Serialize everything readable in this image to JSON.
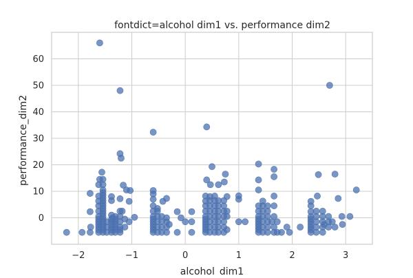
{
  "chart_data": {
    "type": "scatter",
    "title": "fontdict=alcohol dim1 vs. performance dim2",
    "xlabel": "alcohol_dim1",
    "ylabel": "performance_dim2",
    "xlim": [
      -2.5,
      3.5
    ],
    "ylim": [
      -10,
      70
    ],
    "xticks": [
      -2,
      -1,
      0,
      1,
      2,
      3
    ],
    "yticks": [
      0,
      10,
      20,
      30,
      40,
      50,
      60
    ],
    "grid": true,
    "point_color": "#4c72b0",
    "background": "#ffffff",
    "grid_color": "#cccccc",
    "points": [
      {
        "x": -2.22,
        "y": -5.5
      },
      {
        "x": -1.93,
        "y": -5.5
      },
      {
        "x": -1.78,
        "y": -5.5
      },
      {
        "x": -1.77,
        "y": -3.5
      },
      {
        "x": -1.78,
        "y": 9.2
      },
      {
        "x": -1.78,
        "y": 2.3
      },
      {
        "x": -1.62,
        "y": -5.5
      },
      {
        "x": -1.62,
        "y": -4.5
      },
      {
        "x": -1.62,
        "y": -3.5
      },
      {
        "x": -1.62,
        "y": -2.5
      },
      {
        "x": -1.62,
        "y": -1.5
      },
      {
        "x": -1.62,
        "y": -0.5
      },
      {
        "x": -1.62,
        "y": 0.5
      },
      {
        "x": -1.62,
        "y": 2.5
      },
      {
        "x": -1.62,
        "y": 4.5
      },
      {
        "x": -1.62,
        "y": 6.3
      },
      {
        "x": -1.62,
        "y": 8.2
      },
      {
        "x": -1.62,
        "y": 12.5
      },
      {
        "x": -1.6,
        "y": 14.5
      },
      {
        "x": -1.6,
        "y": 66.0
      },
      {
        "x": -1.54,
        "y": -5.5
      },
      {
        "x": -1.54,
        "y": -4.5
      },
      {
        "x": -1.54,
        "y": -3.5
      },
      {
        "x": -1.54,
        "y": -2.5
      },
      {
        "x": -1.54,
        "y": -1.5
      },
      {
        "x": -1.54,
        "y": -0.5
      },
      {
        "x": -1.54,
        "y": 0.5
      },
      {
        "x": -1.54,
        "y": 1.5
      },
      {
        "x": -1.54,
        "y": 2.5
      },
      {
        "x": -1.54,
        "y": 3.5
      },
      {
        "x": -1.54,
        "y": 4.5
      },
      {
        "x": -1.54,
        "y": 5.5
      },
      {
        "x": -1.54,
        "y": 6.5
      },
      {
        "x": -1.54,
        "y": 7.5
      },
      {
        "x": -1.54,
        "y": 8.5
      },
      {
        "x": -1.54,
        "y": 9.5
      },
      {
        "x": -1.54,
        "y": 10.5
      },
      {
        "x": -1.54,
        "y": 12.5
      },
      {
        "x": -1.54,
        "y": 14.5
      },
      {
        "x": -1.56,
        "y": 17.2
      },
      {
        "x": -1.47,
        "y": -5.5
      },
      {
        "x": -1.47,
        "y": -3.5
      },
      {
        "x": -1.47,
        "y": -1.5
      },
      {
        "x": -1.38,
        "y": -5.5
      },
      {
        "x": -1.38,
        "y": -4.5
      },
      {
        "x": -1.38,
        "y": -3.5
      },
      {
        "x": -1.38,
        "y": -2.5
      },
      {
        "x": -1.38,
        "y": -1.5
      },
      {
        "x": -1.38,
        "y": -0.5
      },
      {
        "x": -1.38,
        "y": 1.0
      },
      {
        "x": -1.38,
        "y": 6.5
      },
      {
        "x": -1.38,
        "y": 8.0
      },
      {
        "x": -1.36,
        "y": 0.0
      },
      {
        "x": -1.31,
        "y": -5.5
      },
      {
        "x": -1.31,
        "y": -4.5
      },
      {
        "x": -1.31,
        "y": -3.5
      },
      {
        "x": -1.31,
        "y": -2.5
      },
      {
        "x": -1.31,
        "y": -1.5
      },
      {
        "x": -1.31,
        "y": -0.5
      },
      {
        "x": -1.31,
        "y": 0.5
      },
      {
        "x": -1.22,
        "y": -5.5
      },
      {
        "x": -1.22,
        "y": -4.5
      },
      {
        "x": -1.22,
        "y": -3.5
      },
      {
        "x": -1.22,
        "y": -1.5
      },
      {
        "x": -1.22,
        "y": 0.5
      },
      {
        "x": -1.22,
        "y": 2.5
      },
      {
        "x": -1.22,
        "y": 7.2
      },
      {
        "x": -1.22,
        "y": 24.2
      },
      {
        "x": -1.2,
        "y": 22.5
      },
      {
        "x": -1.22,
        "y": 48.0
      },
      {
        "x": -1.18,
        "y": 2.5
      },
      {
        "x": -1.16,
        "y": 12.3
      },
      {
        "x": -1.13,
        "y": -3.5
      },
      {
        "x": -1.13,
        "y": -0.5
      },
      {
        "x": -1.1,
        "y": 10.5
      },
      {
        "x": -1.05,
        "y": -1.5
      },
      {
        "x": -1.05,
        "y": 6.2
      },
      {
        "x": -1.03,
        "y": 10.3
      },
      {
        "x": -0.95,
        "y": 0.2
      },
      {
        "x": -0.6,
        "y": -5.5
      },
      {
        "x": -0.6,
        "y": -4.5
      },
      {
        "x": -0.6,
        "y": -3.5
      },
      {
        "x": -0.6,
        "y": -2.5
      },
      {
        "x": -0.6,
        "y": -1.5
      },
      {
        "x": -0.6,
        "y": -0.5
      },
      {
        "x": -0.6,
        "y": 0.5
      },
      {
        "x": -0.6,
        "y": 2.5
      },
      {
        "x": -0.6,
        "y": 4.5
      },
      {
        "x": -0.6,
        "y": 7.0
      },
      {
        "x": -0.6,
        "y": 9.0
      },
      {
        "x": -0.6,
        "y": 10.3
      },
      {
        "x": -0.6,
        "y": 32.3
      },
      {
        "x": -0.52,
        "y": -5.5
      },
      {
        "x": -0.52,
        "y": -3.5
      },
      {
        "x": -0.52,
        "y": -1.5
      },
      {
        "x": -0.52,
        "y": 0.5
      },
      {
        "x": -0.52,
        "y": 2.5
      },
      {
        "x": -0.52,
        "y": 3.5
      },
      {
        "x": -0.44,
        "y": -5.5
      },
      {
        "x": -0.44,
        "y": -3.5
      },
      {
        "x": -0.44,
        "y": -1.5
      },
      {
        "x": -0.44,
        "y": 0.5
      },
      {
        "x": -0.42,
        "y": 6.2
      },
      {
        "x": -0.35,
        "y": -5.5
      },
      {
        "x": -0.35,
        "y": -3.5
      },
      {
        "x": -0.35,
        "y": -1.5
      },
      {
        "x": -0.35,
        "y": 0.0
      },
      {
        "x": -0.35,
        "y": 7.3
      },
      {
        "x": -0.3,
        "y": -2.5
      },
      {
        "x": -0.15,
        "y": -5.5
      },
      {
        "x": -0.15,
        "y": 2.3
      },
      {
        "x": -0.08,
        "y": 0.0
      },
      {
        "x": 0.0,
        "y": -1.5
      },
      {
        "x": 0.12,
        "y": -5.5
      },
      {
        "x": 0.12,
        "y": -1.5
      },
      {
        "x": 0.12,
        "y": 2.3
      },
      {
        "x": 0.38,
        "y": -5.5
      },
      {
        "x": 0.38,
        "y": -4.5
      },
      {
        "x": 0.38,
        "y": -3.5
      },
      {
        "x": 0.38,
        "y": -2.5
      },
      {
        "x": 0.38,
        "y": -1.5
      },
      {
        "x": 0.38,
        "y": -0.5
      },
      {
        "x": 0.38,
        "y": 0.5
      },
      {
        "x": 0.38,
        "y": 2.5
      },
      {
        "x": 0.38,
        "y": 4.5
      },
      {
        "x": 0.38,
        "y": 6.3
      },
      {
        "x": 0.38,
        "y": 8.2
      },
      {
        "x": 0.4,
        "y": 14.3
      },
      {
        "x": 0.4,
        "y": 34.3
      },
      {
        "x": 0.46,
        "y": -5.5
      },
      {
        "x": 0.46,
        "y": -3.5
      },
      {
        "x": 0.46,
        "y": -1.5
      },
      {
        "x": 0.46,
        "y": 0.5
      },
      {
        "x": 0.46,
        "y": 2.5
      },
      {
        "x": 0.46,
        "y": 4.5
      },
      {
        "x": 0.46,
        "y": 6.5
      },
      {
        "x": 0.46,
        "y": 8.0
      },
      {
        "x": 0.47,
        "y": 12.5
      },
      {
        "x": 0.5,
        "y": 19.3
      },
      {
        "x": 0.55,
        "y": -5.5
      },
      {
        "x": 0.55,
        "y": -3.5
      },
      {
        "x": 0.55,
        "y": -1.5
      },
      {
        "x": 0.55,
        "y": 0.5
      },
      {
        "x": 0.55,
        "y": 2.5
      },
      {
        "x": 0.55,
        "y": 4.5
      },
      {
        "x": 0.55,
        "y": 6.5
      },
      {
        "x": 0.55,
        "y": 8.2
      },
      {
        "x": 0.62,
        "y": 12.5
      },
      {
        "x": 0.62,
        "y": -5.5
      },
      {
        "x": 0.62,
        "y": -3.5
      },
      {
        "x": 0.62,
        "y": -1.5
      },
      {
        "x": 0.62,
        "y": 0.5
      },
      {
        "x": 0.62,
        "y": 2.5
      },
      {
        "x": 0.62,
        "y": 4.5
      },
      {
        "x": 0.62,
        "y": 6.5
      },
      {
        "x": 0.72,
        "y": -5.5
      },
      {
        "x": 0.72,
        "y": -3.5
      },
      {
        "x": 0.72,
        "y": -1.5
      },
      {
        "x": 0.72,
        "y": 0.5
      },
      {
        "x": 0.72,
        "y": 2.5
      },
      {
        "x": 0.72,
        "y": 4.5
      },
      {
        "x": 0.72,
        "y": 6.5
      },
      {
        "x": 0.73,
        "y": 13.5
      },
      {
        "x": 0.75,
        "y": 16.5
      },
      {
        "x": 0.78,
        "y": -4.5
      },
      {
        "x": 0.78,
        "y": 0.5
      },
      {
        "x": 0.78,
        "y": 2.5
      },
      {
        "x": 0.78,
        "y": 8.0
      },
      {
        "x": 1.0,
        "y": 7.0
      },
      {
        "x": 1.0,
        "y": 8.3
      },
      {
        "x": 1.0,
        "y": -1.5
      },
      {
        "x": 1.12,
        "y": -1.5
      },
      {
        "x": 1.37,
        "y": -5.5
      },
      {
        "x": 1.37,
        "y": -4.5
      },
      {
        "x": 1.37,
        "y": -3.5
      },
      {
        "x": 1.37,
        "y": -2.5
      },
      {
        "x": 1.37,
        "y": -1.5
      },
      {
        "x": 1.37,
        "y": -0.5
      },
      {
        "x": 1.37,
        "y": 0.5
      },
      {
        "x": 1.37,
        "y": 2.5
      },
      {
        "x": 1.37,
        "y": 4.5
      },
      {
        "x": 1.37,
        "y": 10.5
      },
      {
        "x": 1.37,
        "y": 14.3
      },
      {
        "x": 1.37,
        "y": 20.3
      },
      {
        "x": 1.45,
        "y": -5.5
      },
      {
        "x": 1.45,
        "y": -3.5
      },
      {
        "x": 1.45,
        "y": -1.5
      },
      {
        "x": 1.45,
        "y": 0.5
      },
      {
        "x": 1.45,
        "y": 2.5
      },
      {
        "x": 1.45,
        "y": 4.5
      },
      {
        "x": 1.45,
        "y": 6.3
      },
      {
        "x": 1.54,
        "y": -5.5
      },
      {
        "x": 1.54,
        "y": -3.5
      },
      {
        "x": 1.54,
        "y": -1.5
      },
      {
        "x": 1.54,
        "y": 0.5
      },
      {
        "x": 1.54,
        "y": 2.5
      },
      {
        "x": 1.54,
        "y": 4.5
      },
      {
        "x": 1.62,
        "y": -1.5
      },
      {
        "x": 1.66,
        "y": -5.5
      },
      {
        "x": 1.66,
        "y": -3.5
      },
      {
        "x": 1.66,
        "y": 0.5
      },
      {
        "x": 1.66,
        "y": 4.5
      },
      {
        "x": 1.66,
        "y": 8.2
      },
      {
        "x": 1.66,
        "y": 15.5
      },
      {
        "x": 1.66,
        "y": 18.3
      },
      {
        "x": 1.72,
        "y": -5.5
      },
      {
        "x": 1.72,
        "y": -1.5
      },
      {
        "x": 1.8,
        "y": -5.5
      },
      {
        "x": 1.9,
        "y": -3.5
      },
      {
        "x": 1.95,
        "y": -5.5
      },
      {
        "x": 2.15,
        "y": -3.5
      },
      {
        "x": 2.35,
        "y": -5.5
      },
      {
        "x": 2.35,
        "y": -4.5
      },
      {
        "x": 2.35,
        "y": -3.5
      },
      {
        "x": 2.35,
        "y": -2.5
      },
      {
        "x": 2.35,
        "y": -1.5
      },
      {
        "x": 2.35,
        "y": -0.5
      },
      {
        "x": 2.35,
        "y": 0.5
      },
      {
        "x": 2.35,
        "y": 2.3
      },
      {
        "x": 2.35,
        "y": 4.5
      },
      {
        "x": 2.35,
        "y": 6.2
      },
      {
        "x": 2.45,
        "y": -5.5
      },
      {
        "x": 2.45,
        "y": -3.5
      },
      {
        "x": 2.45,
        "y": -1.5
      },
      {
        "x": 2.45,
        "y": 0.5
      },
      {
        "x": 2.45,
        "y": 2.5
      },
      {
        "x": 2.47,
        "y": 8.2
      },
      {
        "x": 2.49,
        "y": 16.3
      },
      {
        "x": 2.57,
        "y": -5.5
      },
      {
        "x": 2.57,
        "y": -3.5
      },
      {
        "x": 2.57,
        "y": -1.5
      },
      {
        "x": 2.57,
        "y": 0.5
      },
      {
        "x": 2.57,
        "y": 2.5
      },
      {
        "x": 2.6,
        "y": -2.5
      },
      {
        "x": 2.68,
        "y": -3.5
      },
      {
        "x": 2.68,
        "y": -1.5
      },
      {
        "x": 2.68,
        "y": 0.5
      },
      {
        "x": 2.7,
        "y": 50.0
      },
      {
        "x": 2.75,
        "y": -1.5
      },
      {
        "x": 2.8,
        "y": -3.5
      },
      {
        "x": 2.8,
        "y": 16.5
      },
      {
        "x": 2.86,
        "y": 7.3
      },
      {
        "x": 2.93,
        "y": 0.5
      },
      {
        "x": 2.94,
        "y": -2.5
      },
      {
        "x": 3.08,
        "y": 0.5
      },
      {
        "x": 3.2,
        "y": 10.5
      }
    ]
  }
}
